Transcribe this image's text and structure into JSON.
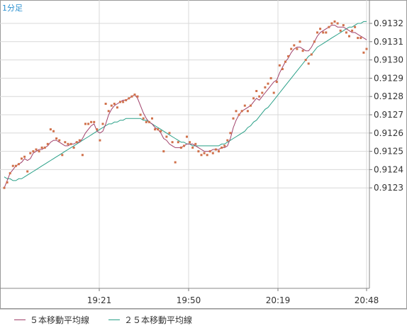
{
  "period_label": "1分足",
  "legend": [
    {
      "name": "５本移動平均線",
      "color": "#a0406a"
    },
    {
      "name": "２５本移動平均線",
      "color": "#2aa088"
    }
  ],
  "colors": {
    "candle_dot": "#d0704a",
    "ma5": "#a0406a",
    "ma25": "#2aa088",
    "grid": "#d8d8d8",
    "frame": "#9a9a9a"
  },
  "chart_data": {
    "type": "scatter",
    "x_ticks": [
      "19:21",
      "19:50",
      "20:19",
      "20:48"
    ],
    "y_ticks": [
      "0.9123",
      "0.9124",
      "0.9125",
      "0.9126",
      "0.9127",
      "0.9128",
      "0.9129",
      "0.9130",
      "0.9131",
      "0.9132"
    ],
    "ylim": [
      0.91227,
      0.91323
    ],
    "price_points": [
      0.9123,
      0.91233,
      0.91238,
      0.91242,
      0.91242,
      0.91243,
      0.91246,
      0.91247,
      0.91239,
      0.91249,
      0.9125,
      0.91251,
      0.9125,
      0.91252,
      0.91252,
      0.91254,
      0.91262,
      0.91261,
      0.91257,
      0.91256,
      0.91248,
      0.91255,
      0.91254,
      0.91254,
      0.91252,
      0.91255,
      0.91256,
      0.91248,
      0.91265,
      0.91265,
      0.91266,
      0.91266,
      0.91262,
      0.91256,
      0.91265,
      0.91276,
      0.91272,
      0.91275,
      0.91276,
      0.91274,
      0.91277,
      0.91277,
      0.91278,
      0.91279,
      0.9128,
      0.91281,
      0.9128,
      0.9127,
      0.91268,
      0.91266,
      0.91266,
      0.91268,
      0.91262,
      0.91262,
      0.91261,
      0.9125,
      0.91258,
      0.9126,
      0.91255,
      0.91244,
      0.91255,
      0.91252,
      0.91253,
      0.91258,
      0.91255,
      0.91252,
      0.91254,
      0.9125,
      0.91248,
      0.91249,
      0.91248,
      0.9125,
      0.91249,
      0.91251,
      0.9125,
      0.91252,
      0.91253,
      0.91256,
      0.9126,
      0.91268,
      0.91272,
      0.9127,
      0.91272,
      0.91275,
      0.91272,
      0.91275,
      0.91279,
      0.91283,
      0.9128,
      0.91282,
      0.91285,
      0.91287,
      0.9129,
      0.91282,
      0.91288,
      0.91297,
      0.91295,
      0.91299,
      0.91302,
      0.91306,
      0.91308,
      0.91306,
      0.9131,
      0.91305,
      0.913,
      0.91298,
      0.91303,
      0.9131,
      0.91315,
      0.91317,
      0.91315,
      0.91315,
      0.91318,
      0.9132,
      0.91321,
      0.9132,
      0.91316,
      0.91319,
      0.91315,
      0.91313,
      0.91316,
      0.91318,
      0.91312,
      0.91312,
      0.91304,
      0.91306
    ],
    "ma5": [
      0.9123,
      0.91234,
      0.91238,
      0.9124,
      0.91242,
      0.91243,
      0.91244,
      0.91246,
      0.91245,
      0.91246,
      0.91249,
      0.9125,
      0.91251,
      0.91251,
      0.91252,
      0.91253,
      0.91255,
      0.91256,
      0.91256,
      0.91255,
      0.91254,
      0.91253,
      0.91253,
      0.91254,
      0.91254,
      0.91255,
      0.91255,
      0.91257,
      0.9126,
      0.91262,
      0.91264,
      0.91265,
      0.91261,
      0.9126,
      0.91261,
      0.91265,
      0.9127,
      0.91273,
      0.91275,
      0.91276,
      0.91277,
      0.91278,
      0.91278,
      0.91279,
      0.9128,
      0.91281,
      0.91279,
      0.91275,
      0.91271,
      0.91268,
      0.91266,
      0.91265,
      0.91263,
      0.91262,
      0.9126,
      0.91257,
      0.91256,
      0.91254,
      0.91253,
      0.91252,
      0.91252,
      0.91252,
      0.91253,
      0.91254,
      0.91254,
      0.91254,
      0.91253,
      0.91252,
      0.91251,
      0.9125,
      0.9125,
      0.9125,
      0.91251,
      0.91251,
      0.91251,
      0.91252,
      0.91252,
      0.91253,
      0.91257,
      0.91263,
      0.91267,
      0.9127,
      0.91272,
      0.91273,
      0.91274,
      0.91275,
      0.91277,
      0.91279,
      0.91278,
      0.9128,
      0.91282,
      0.91284,
      0.91286,
      0.91288,
      0.91289,
      0.91293,
      0.91296,
      0.91299,
      0.91301,
      0.91304,
      0.91306,
      0.91307,
      0.91307,
      0.91306,
      0.91305,
      0.91305,
      0.91307,
      0.9131,
      0.91313,
      0.91315,
      0.91316,
      0.91317,
      0.91318,
      0.91319,
      0.91319,
      0.91318,
      0.91318,
      0.91318,
      0.91317,
      0.91316,
      0.91315,
      0.91315,
      0.91314,
      0.91313,
      0.91312,
      0.91311
    ],
    "ma25": [
      0.91236,
      0.91235,
      0.91235,
      0.91234,
      0.91234,
      0.91235,
      0.91235,
      0.91236,
      0.91237,
      0.91238,
      0.91239,
      0.9124,
      0.91241,
      0.91242,
      0.91243,
      0.91244,
      0.91245,
      0.91246,
      0.91247,
      0.91248,
      0.91249,
      0.9125,
      0.91251,
      0.91252,
      0.91253,
      0.91254,
      0.91255,
      0.91256,
      0.91257,
      0.91258,
      0.91259,
      0.9126,
      0.91261,
      0.91262,
      0.91263,
      0.91264,
      0.91265,
      0.91265,
      0.91266,
      0.91266,
      0.91267,
      0.91267,
      0.91268,
      0.91268,
      0.91268,
      0.91268,
      0.91268,
      0.91268,
      0.91267,
      0.91267,
      0.91266,
      0.91265,
      0.91264,
      0.91263,
      0.91262,
      0.91261,
      0.9126,
      0.91259,
      0.91258,
      0.91257,
      0.91256,
      0.91255,
      0.91255,
      0.91254,
      0.91254,
      0.91253,
      0.91253,
      0.91253,
      0.91253,
      0.91253,
      0.91253,
      0.91253,
      0.91253,
      0.91253,
      0.91253,
      0.91254,
      0.91254,
      0.91255,
      0.91256,
      0.91257,
      0.91258,
      0.91259,
      0.9126,
      0.91261,
      0.91263,
      0.91264,
      0.91266,
      0.91267,
      0.91269,
      0.91271,
      0.91273,
      0.91274,
      0.91276,
      0.91278,
      0.9128,
      0.91282,
      0.91284,
      0.91286,
      0.91288,
      0.9129,
      0.91292,
      0.91294,
      0.91296,
      0.91298,
      0.913,
      0.91302,
      0.91303,
      0.91305,
      0.91307,
      0.91308,
      0.91309,
      0.9131,
      0.91311,
      0.91312,
      0.91313,
      0.91314,
      0.91315,
      0.91316,
      0.91317,
      0.91318,
      0.91318,
      0.91319,
      0.9132,
      0.9132,
      0.91321,
      0.91321
    ]
  }
}
